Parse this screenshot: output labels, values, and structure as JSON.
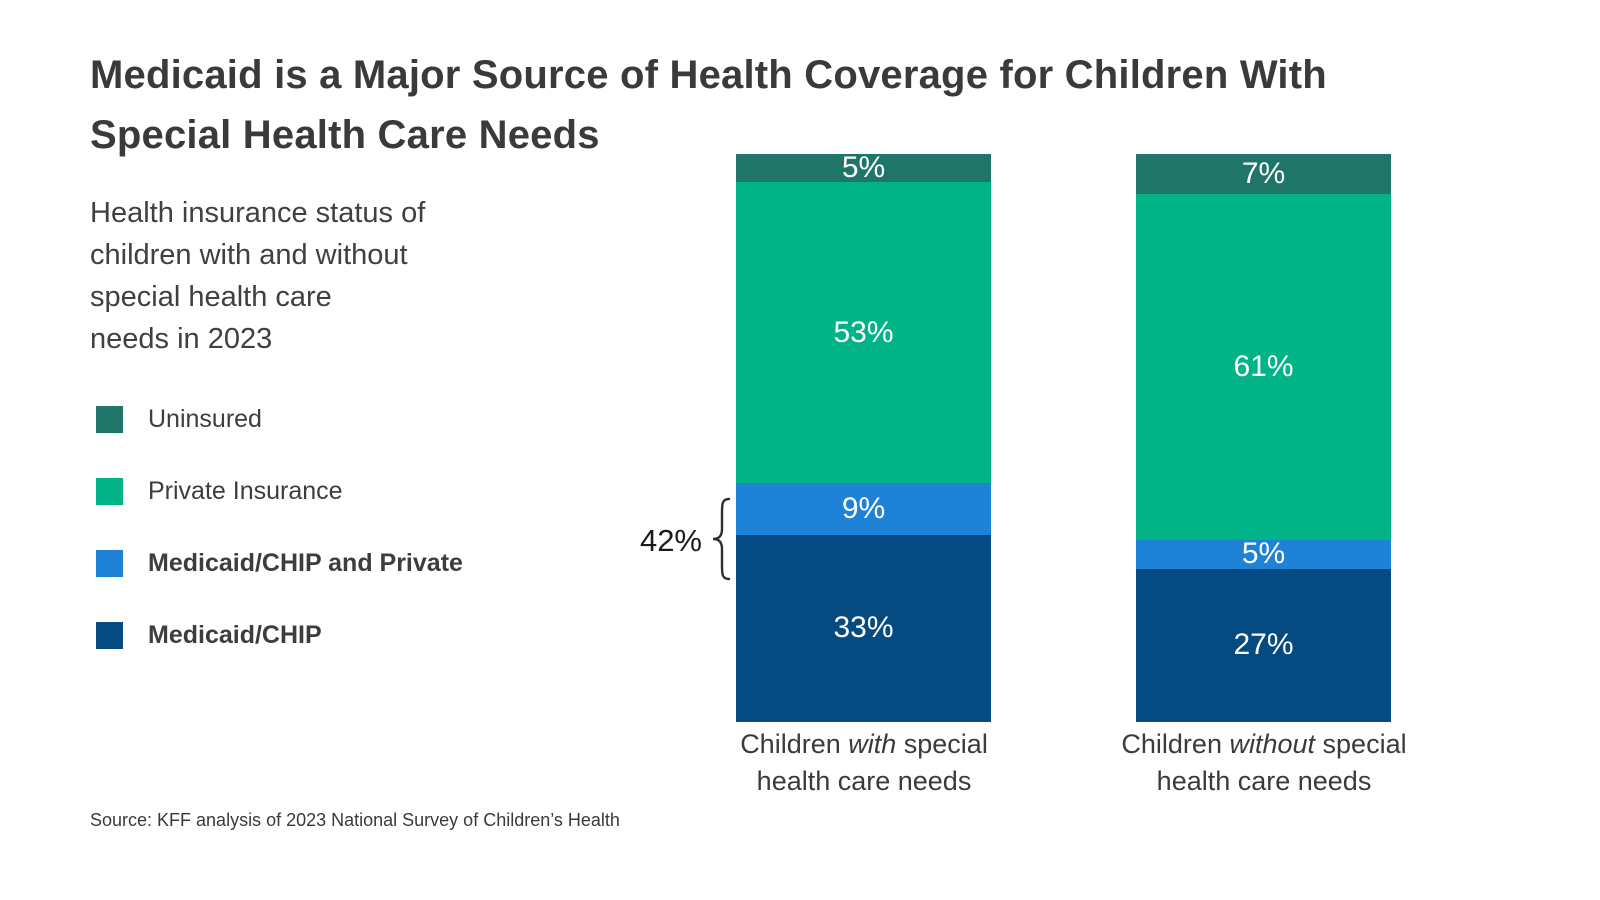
{
  "header": {
    "title_lines": [
      "Medicaid is a Major Source of Health Coverage for Children With",
      "Special Health Care Needs"
    ],
    "subtitle_lines": [
      "Health insurance status of",
      "children with and without",
      "special health care",
      "needs in 2023"
    ]
  },
  "colors": {
    "uninsured": "#1F7568",
    "private": "#00B488",
    "medicaid_private": "#1E82D6",
    "medicaid": "#054A80",
    "title_text": "#3A3A3A",
    "body_text": "#404040",
    "bar_value_text": "#FFFFFF",
    "background": "#FFFFFF"
  },
  "legend": {
    "items": [
      {
        "key": "uninsured",
        "label": "Uninsured",
        "bold": false
      },
      {
        "key": "private",
        "label": "Private Insurance",
        "bold": false
      },
      {
        "key": "medicaid_private",
        "label": "Medicaid/CHIP and Private",
        "bold": true
      },
      {
        "key": "medicaid",
        "label": "Medicaid/CHIP",
        "bold": true
      }
    ]
  },
  "chart_data": {
    "type": "bar",
    "subtype": "stacked-100-percent",
    "unit": "%",
    "grid": false,
    "legend_position": "left",
    "categories": [
      "Children with special health care needs",
      "Children without special health care needs"
    ],
    "category_label_parts": [
      {
        "pre": "Children ",
        "italic": "with",
        "post": " special",
        "line2": "health care needs"
      },
      {
        "pre": "Children ",
        "italic": "without",
        "post": " special",
        "line2": "health care needs"
      }
    ],
    "series": [
      {
        "name": "Uninsured",
        "color_key": "uninsured",
        "values": [
          5,
          7
        ]
      },
      {
        "name": "Private Insurance",
        "color_key": "private",
        "values": [
          53,
          61
        ]
      },
      {
        "name": "Medicaid/CHIP and Private",
        "color_key": "medicaid_private",
        "values": [
          9,
          5
        ]
      },
      {
        "name": "Medicaid/CHIP",
        "color_key": "medicaid",
        "values": [
          33,
          27
        ]
      }
    ],
    "value_label_format": "{v}%",
    "annotation": {
      "label": "42%"
    }
  },
  "footer": {
    "source": "Source: KFF analysis of 2023 National Survey of Children’s Health"
  }
}
